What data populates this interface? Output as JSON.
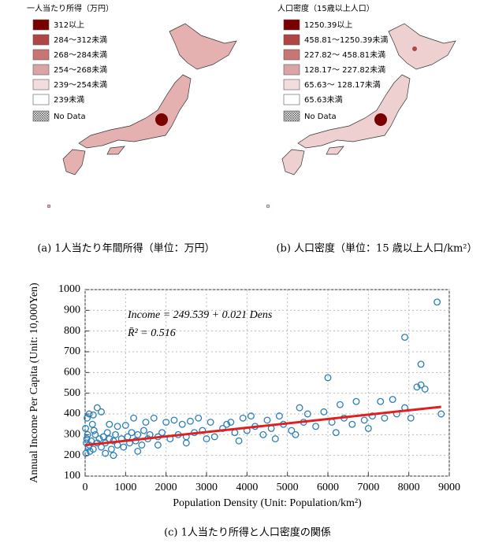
{
  "chart_data": [
    {
      "type": "map",
      "legend_title": "一人当たり所得（万円）",
      "legend": [
        {
          "label": "312以上",
          "color": "#7a0000"
        },
        {
          "label": "284～312未満",
          "color": "#b04545"
        },
        {
          "label": "268～284未満",
          "color": "#c87575"
        },
        {
          "label": "254～268未満",
          "color": "#dca5a5"
        },
        {
          "label": "239～254未満",
          "color": "#f3dcdc"
        },
        {
          "label": "239未満",
          "color": "#ffffff"
        }
      ],
      "no_data": "No Data",
      "caption": "(a) 1人当たり年間所得（単位：万円）"
    },
    {
      "type": "map",
      "legend_title": "人口密度（15歳以上人口）",
      "legend": [
        {
          "label": "1250.39以上",
          "color": "#7a0000"
        },
        {
          "label": "458.81～1250.39未満",
          "color": "#b04545"
        },
        {
          "label": "227.82～ 458.81未満",
          "color": "#c87575"
        },
        {
          "label": "128.17～ 227.82未満",
          "color": "#dca5a5"
        },
        {
          "label": " 65.63～ 128.17未満",
          "color": "#f3dcdc"
        },
        {
          "label": " 65.63未満",
          "color": "#ffffff"
        }
      ],
      "no_data": "No Data",
      "caption": "(b)  人口密度（単位：15 歳以上人口/km²）"
    },
    {
      "type": "scatter",
      "color": "#2a7fb8",
      "fit_color": "#e02020",
      "xlabel": "Population Density (Unit: Population/km²)",
      "ylabel": "Annual Income Per Capita (Unit: 10,000Yen)",
      "annotations": [
        "Income = 249.539 + 0.021 Dens",
        "R̄² = 0.516"
      ],
      "caption": "(c) 1人当たり所得と人口密度の関係",
      "xlim": [
        0,
        9000
      ],
      "ylim": [
        100,
        1000
      ],
      "xticks": [
        0,
        1000,
        2000,
        3000,
        4000,
        5000,
        6000,
        7000,
        8000,
        9000
      ],
      "yticks": [
        100,
        200,
        300,
        400,
        500,
        600,
        700,
        800,
        900,
        1000
      ],
      "grid": true,
      "fit": {
        "intercept": 249.539,
        "slope": 0.021,
        "x": [
          0,
          8800
        ]
      },
      "x": [
        8700,
        7900,
        8300,
        8400,
        8300,
        8200,
        6000,
        6700,
        7300,
        7600,
        8050,
        8800,
        7900,
        5300,
        6300,
        5900,
        5500,
        4800,
        4500,
        4100,
        3900,
        3600,
        3500,
        3100,
        2800,
        2600,
        2400,
        2200,
        2000,
        1700,
        1500,
        1200,
        1000,
        800,
        600,
        400,
        300,
        200,
        100,
        50,
        100,
        150,
        200,
        250,
        300,
        350,
        400,
        450,
        500,
        550,
        600,
        650,
        700,
        750,
        800,
        900,
        950,
        1050,
        1100,
        1150,
        1250,
        1300,
        1400,
        1450,
        1550,
        1600,
        1800,
        1900,
        2100,
        2300,
        2500,
        2700,
        2900,
        3200,
        3400,
        3700,
        4000,
        4200,
        4400,
        4600,
        4900,
        5100,
        5400,
        5700,
        6100,
        6400,
        6600,
        6900,
        7100,
        7400,
        7700,
        20,
        30,
        60,
        10,
        40,
        80,
        120,
        180,
        220,
        500,
        700,
        1300,
        1800,
        2500,
        3000,
        3800,
        4700,
        5200,
        6200,
        7000
      ],
      "values": [
        940,
        770,
        640,
        520,
        540,
        530,
        575,
        460,
        460,
        470,
        380,
        400,
        430,
        430,
        445,
        410,
        400,
        390,
        370,
        390,
        380,
        360,
        350,
        360,
        380,
        365,
        350,
        370,
        360,
        380,
        360,
        380,
        345,
        340,
        350,
        410,
        430,
        395,
        400,
        380,
        250,
        270,
        230,
        300,
        260,
        280,
        240,
        290,
        260,
        310,
        280,
        230,
        270,
        300,
        250,
        280,
        240,
        290,
        260,
        310,
        270,
        300,
        250,
        320,
        280,
        300,
        290,
        310,
        280,
        300,
        290,
        310,
        320,
        290,
        330,
        310,
        320,
        340,
        300,
        330,
        350,
        320,
        360,
        340,
        360,
        380,
        350,
        370,
        390,
        380,
        400,
        210,
        260,
        300,
        330,
        280,
        240,
        220,
        350,
        320,
        210,
        200,
        220,
        250,
        260,
        280,
        270,
        280,
        300,
        310,
        330
      ]
    }
  ]
}
